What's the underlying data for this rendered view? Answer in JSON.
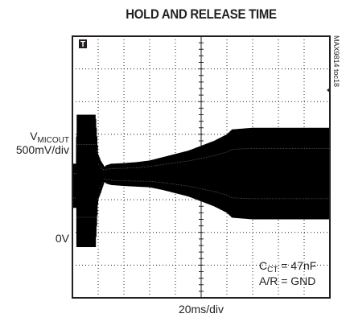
{
  "chart_data": {
    "type": "line",
    "title": "HOLD AND RELEASE TIME",
    "ylabel_main": "V",
    "ylabel_sub": "MICOUT",
    "ylabel_scale": "500mV/div",
    "zero_label": "0V",
    "xlabel": "20ms/div",
    "side_label": "MAX9814 toc18",
    "trigger_marker": "T",
    "annotation": {
      "cct_main": "C",
      "cct_sub": "CT",
      "cct_value": " = 47nF",
      "ar": "A/R = GND"
    },
    "divisions": {
      "x": 10,
      "y": 8
    },
    "x_unit_per_div_ms": 20,
    "y_unit_per_div_mV": 500,
    "series": [
      {
        "envelope_divs": {
          "t": [
            0,
            0.15,
            0.16,
            0.9,
            1.0,
            1.05,
            1.1,
            1.25,
            1.3,
            1.5,
            2.0,
            2.5,
            3.0,
            3.5,
            4.0,
            4.5,
            5.0,
            5.5,
            6.0,
            6.2,
            7.0,
            8.0,
            9.0,
            10.0
          ],
          "top": [
            4.1,
            4.1,
            5.6,
            5.6,
            4.4,
            4.3,
            4.2,
            4.0,
            4.05,
            4.1,
            4.12,
            4.15,
            4.2,
            4.3,
            4.4,
            4.5,
            4.65,
            4.8,
            5.0,
            5.15,
            5.2,
            5.2,
            5.2,
            5.2
          ],
          "bottom": [
            2.75,
            2.75,
            1.55,
            1.55,
            3.0,
            3.1,
            3.2,
            3.55,
            3.5,
            3.45,
            3.42,
            3.4,
            3.38,
            3.3,
            3.2,
            3.1,
            2.95,
            2.8,
            2.6,
            2.45,
            2.4,
            2.4,
            2.4,
            2.4
          ]
        }
      }
    ],
    "colors": {
      "trace": "#000000",
      "grid": "#231f20",
      "frame": "#231f20"
    }
  }
}
